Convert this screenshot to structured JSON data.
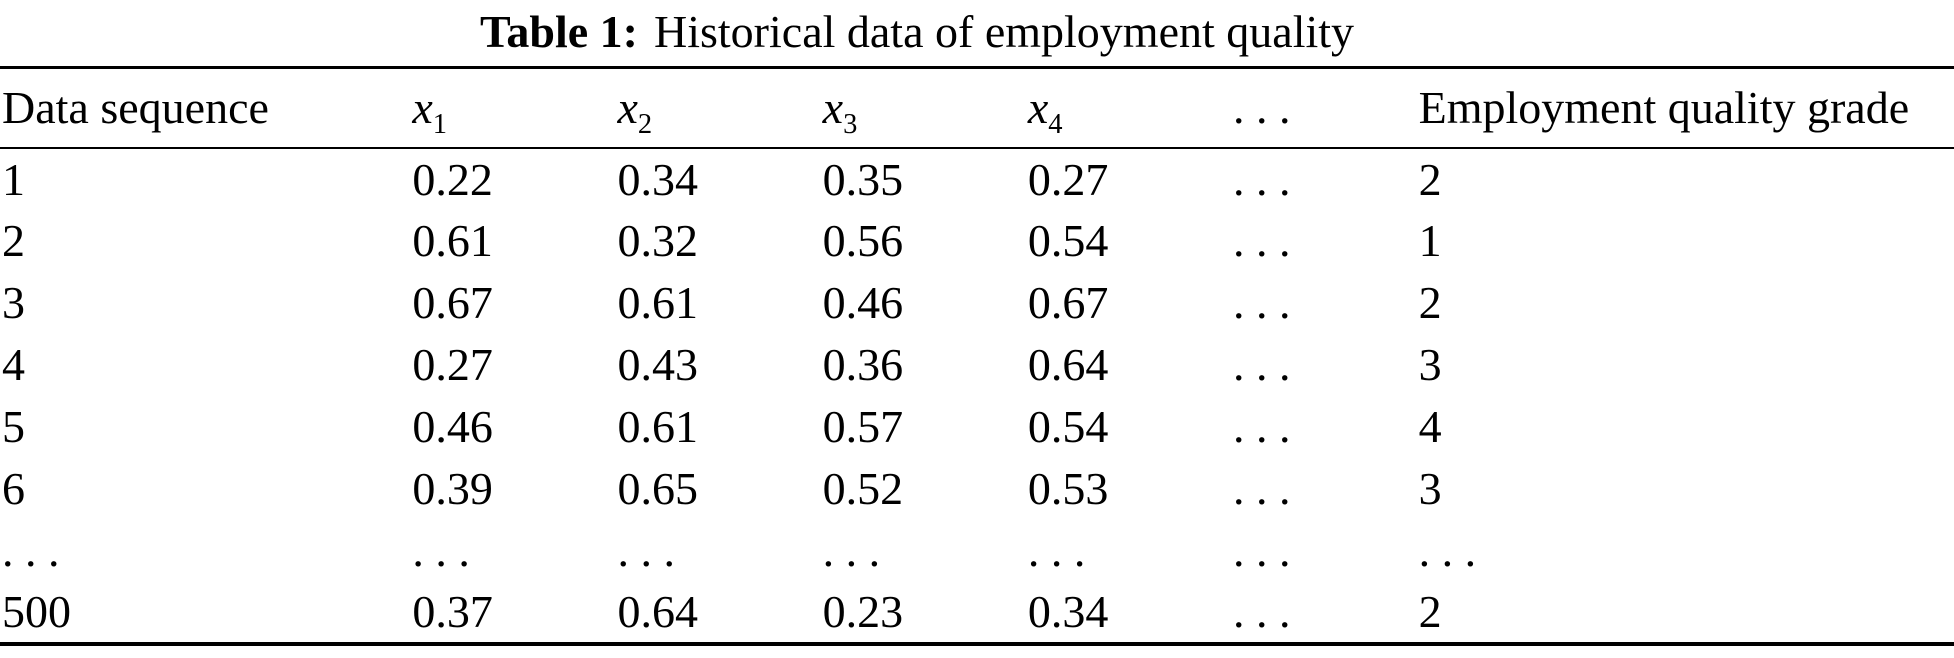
{
  "caption": {
    "label": "Table 1:",
    "text": "Historical data of employment quality"
  },
  "table": {
    "columns": [
      {
        "base": "Data sequence",
        "sub": "",
        "italic": false
      },
      {
        "base": "x",
        "sub": "1",
        "italic": true
      },
      {
        "base": "x",
        "sub": "2",
        "italic": true
      },
      {
        "base": "x",
        "sub": "3",
        "italic": true
      },
      {
        "base": "x",
        "sub": "4",
        "italic": true
      },
      {
        "base": ". . .",
        "sub": "",
        "italic": false
      },
      {
        "base": "Employment quality grade",
        "sub": "",
        "italic": false
      }
    ],
    "rows": [
      [
        "1",
        "0.22",
        "0.34",
        "0.35",
        "0.27",
        ". . .",
        "2"
      ],
      [
        "2",
        "0.61",
        "0.32",
        "0.56",
        "0.54",
        ". . .",
        "1"
      ],
      [
        "3",
        "0.67",
        "0.61",
        "0.46",
        "0.67",
        ". . .",
        "2"
      ],
      [
        "4",
        "0.27",
        "0.43",
        "0.36",
        "0.64",
        ". . .",
        "3"
      ],
      [
        "5",
        "0.46",
        "0.61",
        "0.57",
        "0.54",
        ". . .",
        "4"
      ],
      [
        "6",
        "0.39",
        "0.65",
        "0.52",
        "0.53",
        ". . .",
        "3"
      ],
      [
        ". . .",
        ". . .",
        ". . .",
        ". . .",
        ". . .",
        ". . .",
        ". . ."
      ],
      [
        "500",
        "0.37",
        "0.64",
        "0.23",
        "0.34",
        ". . .",
        "2"
      ]
    ]
  },
  "colors": {
    "text": "#000000",
    "background": "#ffffff",
    "rule": "#000000"
  }
}
